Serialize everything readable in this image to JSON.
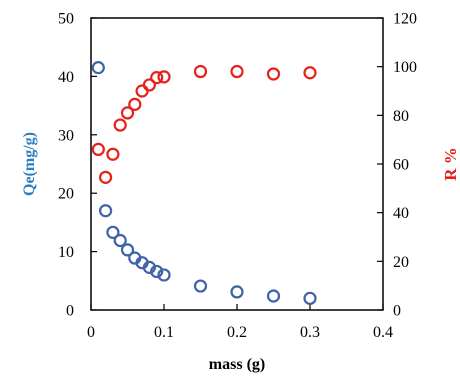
{
  "chart_data": {
    "type": "scatter",
    "title": "",
    "xlabel": "mass (g)",
    "ylabel_left": "Qe(mg/g)",
    "ylabel_right": "R %",
    "xlim": [
      0,
      0.4
    ],
    "ylim_left": [
      0,
      50
    ],
    "ylim_right": [
      0,
      120
    ],
    "x_ticks": [
      0,
      0.1,
      0.2,
      0.3,
      0.4
    ],
    "x_tick_labels": [
      "0",
      "0.1",
      "0.2",
      "0.3",
      "0.4"
    ],
    "y_left_ticks": [
      0,
      10,
      20,
      30,
      40,
      50
    ],
    "y_left_tick_labels": [
      "0",
      "10",
      "20",
      "30",
      "40",
      "50"
    ],
    "y_right_ticks": [
      0,
      20,
      40,
      60,
      80,
      100,
      120
    ],
    "y_right_tick_labels": [
      "0",
      "20",
      "40",
      "60",
      "80",
      "100",
      "120"
    ],
    "grid": false,
    "legend": "none",
    "series": [
      {
        "axis": "left",
        "color": "#3f62a8",
        "marker": "open-circle",
        "points": [
          [
            0.01,
            41.5
          ],
          [
            0.02,
            17.0
          ],
          [
            0.03,
            13.3
          ],
          [
            0.04,
            11.9
          ],
          [
            0.05,
            10.3
          ],
          [
            0.06,
            8.9
          ],
          [
            0.07,
            8.1
          ],
          [
            0.08,
            7.3
          ],
          [
            0.09,
            6.6
          ],
          [
            0.1,
            6.0
          ],
          [
            0.15,
            4.1
          ],
          [
            0.2,
            3.1
          ],
          [
            0.25,
            2.4
          ],
          [
            0.3,
            2.0
          ]
        ]
      },
      {
        "axis": "right",
        "color": "#e8201a",
        "marker": "open-circle",
        "points": [
          [
            0.01,
            66.0
          ],
          [
            0.02,
            54.5
          ],
          [
            0.03,
            64.0
          ],
          [
            0.04,
            76.0
          ],
          [
            0.05,
            81.0
          ],
          [
            0.06,
            84.5
          ],
          [
            0.07,
            90.0
          ],
          [
            0.08,
            92.5
          ],
          [
            0.09,
            95.5
          ],
          [
            0.1,
            95.8
          ],
          [
            0.15,
            98.0
          ],
          [
            0.2,
            98.0
          ],
          [
            0.25,
            97.0
          ],
          [
            0.3,
            97.5
          ]
        ]
      }
    ],
    "colors": {
      "left_axis_title": "#2e7fc1",
      "right_axis_title": "#e8201a",
      "axes": "#000000"
    }
  }
}
